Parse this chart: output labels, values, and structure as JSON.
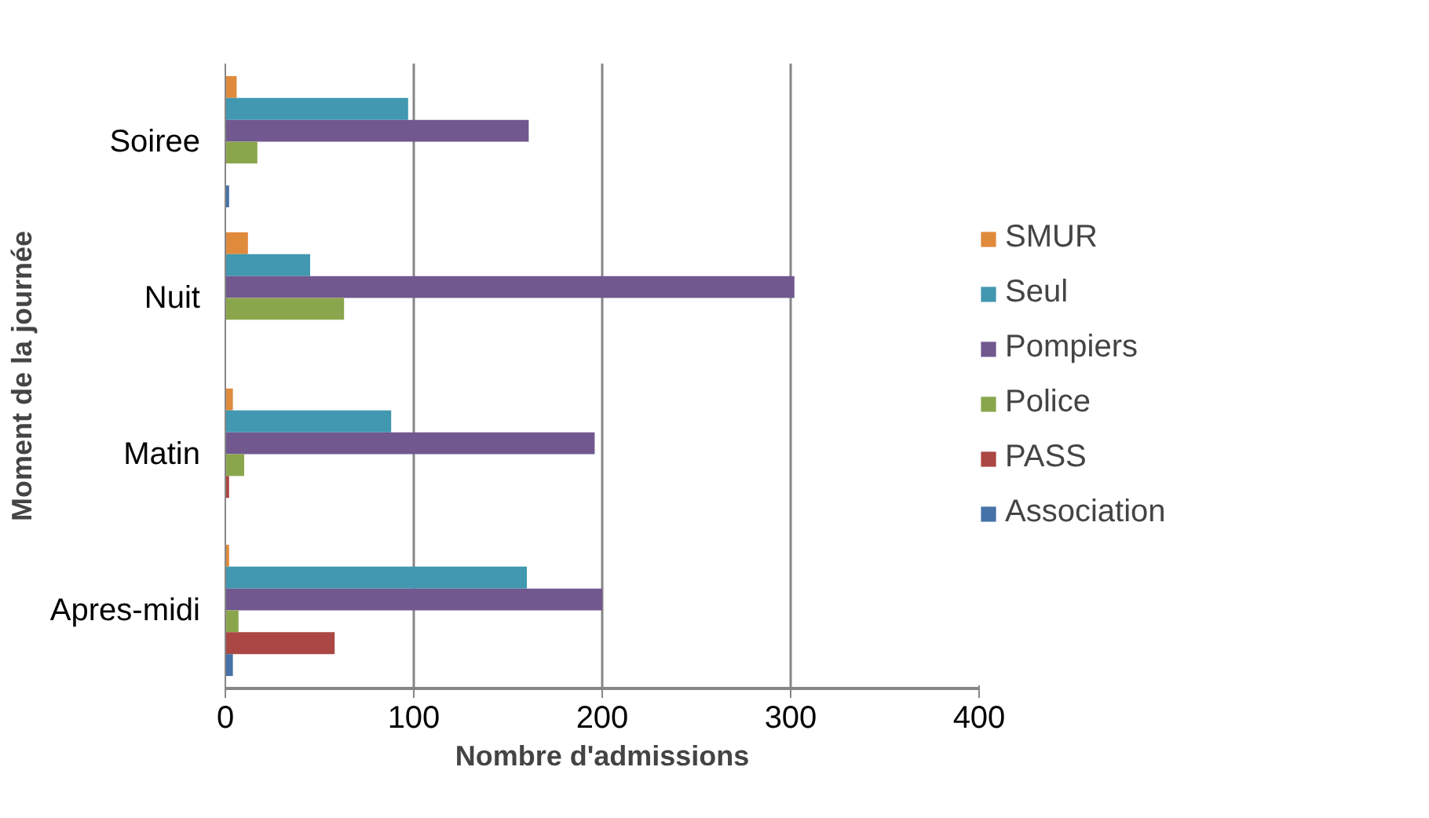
{
  "chart_data": {
    "type": "bar",
    "orientation": "horizontal",
    "xlabel": "Nombre d'admissions",
    "ylabel": "Moment de la journée",
    "categories": [
      "Soiree",
      "Nuit",
      "Matin",
      "Apres-midi"
    ],
    "series": [
      {
        "name": "SMUR",
        "color": "#e08a3c",
        "values": [
          6,
          12,
          4,
          2
        ]
      },
      {
        "name": "Seul",
        "color": "#4198b0",
        "values": [
          97,
          45,
          88,
          160
        ]
      },
      {
        "name": "Pompiers",
        "color": "#71588f",
        "values": [
          161,
          302,
          196,
          200
        ]
      },
      {
        "name": "Police",
        "color": "#8aa64d",
        "values": [
          17,
          63,
          10,
          7
        ]
      },
      {
        "name": "PASS",
        "color": "#aa4644",
        "values": [
          0,
          0,
          2,
          58
        ]
      },
      {
        "name": "Association",
        "color": "#4572a7",
        "values": [
          2,
          0,
          0,
          4
        ]
      }
    ],
    "xlim": [
      0,
      400
    ],
    "xticks": [
      0,
      100,
      200,
      300,
      400
    ],
    "grid": "x",
    "legend": "right"
  }
}
